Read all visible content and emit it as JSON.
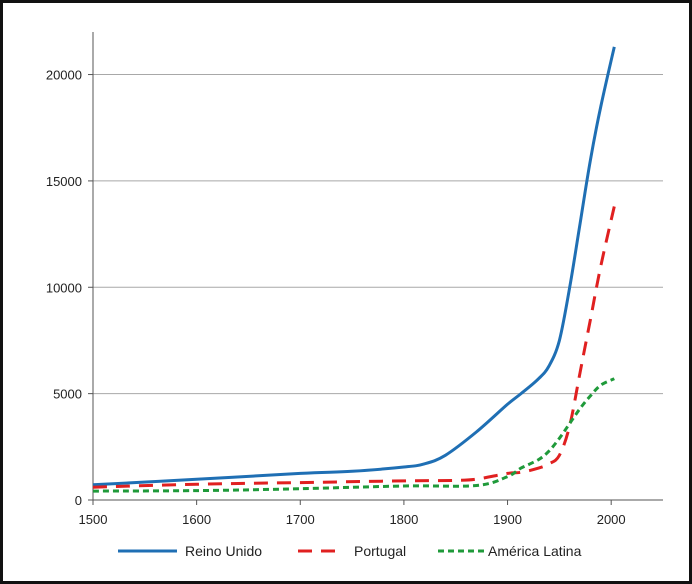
{
  "chart_data": {
    "type": "line",
    "title": "",
    "xlabel": "",
    "ylabel": "",
    "xlim": [
      1500,
      2050
    ],
    "ylim": [
      0,
      22000
    ],
    "x_ticks": [
      "1500",
      "1600",
      "1700",
      "1800",
      "1900",
      "2000"
    ],
    "y_ticks": [
      "0",
      "5000",
      "10000",
      "15000",
      "20000"
    ],
    "grid": "horizontal",
    "legend_position": "bottom",
    "series": [
      {
        "name": "Reino Unido",
        "color": "#1f6fb4",
        "dash": "solid",
        "x": [
          1500,
          1600,
          1700,
          1750,
          1800,
          1820,
          1840,
          1870,
          1900,
          1913,
          1930,
          1940,
          1950,
          1960,
          1970,
          1980,
          1990,
          2003
        ],
        "y": [
          714,
          974,
          1250,
          1350,
          1550,
          1700,
          2100,
          3200,
          4500,
          5000,
          5700,
          6300,
          7500,
          10000,
          13000,
          16000,
          18500,
          21300
        ]
      },
      {
        "name": "Portugal",
        "color": "#e02020",
        "dash": "dashed",
        "x": [
          1500,
          1600,
          1700,
          1800,
          1850,
          1870,
          1900,
          1913,
          1930,
          1940,
          1950,
          1960,
          1970,
          1980,
          1990,
          2003
        ],
        "y": [
          600,
          740,
          820,
          900,
          920,
          980,
          1250,
          1300,
          1500,
          1700,
          2100,
          3500,
          6000,
          8500,
          11000,
          13800
        ]
      },
      {
        "name": "América Latina",
        "color": "#1f9a3a",
        "dash": "dotted",
        "x": [
          1500,
          1600,
          1700,
          1800,
          1870,
          1900,
          1913,
          1930,
          1940,
          1950,
          1960,
          1970,
          1980,
          1990,
          2003
        ],
        "y": [
          420,
          440,
          530,
          660,
          680,
          1100,
          1500,
          1900,
          2300,
          2900,
          3600,
          4300,
          4900,
          5400,
          5700
        ]
      }
    ]
  }
}
